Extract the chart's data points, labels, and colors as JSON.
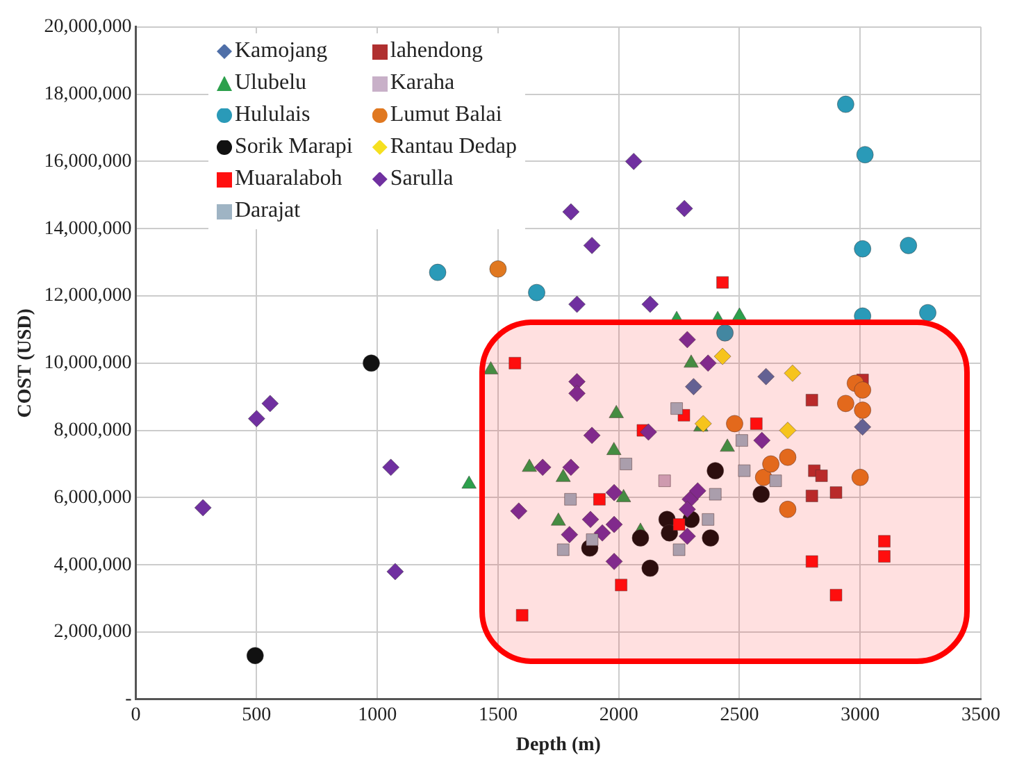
{
  "chart_data": {
    "type": "scatter",
    "xlabel": "Depth (m)",
    "ylabel": "COST (USD)",
    "xlim": [
      0,
      3500
    ],
    "xticks": [
      0,
      500,
      1000,
      1500,
      2000,
      2500,
      3000,
      3500
    ],
    "ylim": [
      0,
      20000000
    ],
    "yticks": [
      {
        "value": 0,
        "label": "-"
      },
      {
        "value": 2000000,
        "label": "2,000,000"
      },
      {
        "value": 4000000,
        "label": "4,000,000"
      },
      {
        "value": 6000000,
        "label": "6,000,000"
      },
      {
        "value": 8000000,
        "label": "8,000,000"
      },
      {
        "value": 10000000,
        "label": "10,000,000"
      },
      {
        "value": 12000000,
        "label": "12,000,000"
      },
      {
        "value": 14000000,
        "label": "14,000,000"
      },
      {
        "value": 16000000,
        "label": "16,000,000"
      },
      {
        "value": 18000000,
        "label": "18,000,000"
      },
      {
        "value": 20000000,
        "label": "20,000,000"
      }
    ],
    "grid": true,
    "legend": "top left",
    "series": [
      {
        "name": "Kamojang",
        "color": "#4f6fa8",
        "marker": "diamond",
        "x": [
          2310,
          2610,
          3010
        ],
        "values": [
          9300000,
          9600000,
          8100000
        ]
      },
      {
        "name": "lahendong",
        "color": "#b03030",
        "marker": "square",
        "x": [
          2800,
          2800,
          2810,
          2840,
          2900,
          3010
        ],
        "values": [
          8900000,
          6050000,
          6800000,
          6650000,
          6150000,
          9500000
        ]
      },
      {
        "name": "Ulubelu",
        "color": "#2ca04c",
        "marker": "triangle",
        "x": [
          1380,
          1470,
          1630,
          1750,
          1770,
          1980,
          1990,
          2020,
          2090,
          2240,
          2300,
          2340,
          2410,
          2450,
          2500
        ],
        "values": [
          6400000,
          9800000,
          6900000,
          5300000,
          6600000,
          7400000,
          8500000,
          6000000,
          5000000,
          11300000,
          10000000,
          8100000,
          11300000,
          7500000,
          11400000
        ]
      },
      {
        "name": "Karaha",
        "color": "#c8b0c8",
        "marker": "square",
        "x": [
          2190
        ],
        "values": [
          6500000
        ]
      },
      {
        "name": "Hululais",
        "color": "#2a9ab8",
        "marker": "circle",
        "x": [
          1250,
          1660,
          2440,
          2940,
          3020,
          3010,
          3200,
          3010,
          3280
        ],
        "values": [
          12700000,
          12100000,
          10900000,
          17700000,
          16200000,
          13400000,
          13500000,
          11400000,
          11500000
        ]
      },
      {
        "name": "Lumut Balai",
        "color": "#e07820",
        "marker": "circle",
        "x": [
          1500,
          2480,
          2600,
          2630,
          2700,
          2700,
          2940,
          2980,
          3000,
          3010,
          3010
        ],
        "values": [
          12800000,
          8200000,
          6600000,
          7000000,
          7200000,
          5650000,
          8800000,
          9400000,
          6600000,
          9200000,
          8600000
        ]
      },
      {
        "name": "Sorik Marapi",
        "color": "#111111",
        "marker": "circle",
        "x": [
          494,
          975,
          1880,
          2090,
          2130,
          2200,
          2210,
          2300,
          2380,
          2400,
          2590
        ],
        "values": [
          1300000,
          10000000,
          4500000,
          4800000,
          3900000,
          5350000,
          4950000,
          5350000,
          4800000,
          6800000,
          6100000
        ]
      },
      {
        "name": "Rantau Dedap",
        "color": "#f5e020",
        "marker": "diamond",
        "x": [
          2350,
          2430,
          2700,
          2720
        ],
        "values": [
          8200000,
          10200000,
          8000000,
          9700000
        ]
      },
      {
        "name": "Muaralaboh",
        "color": "#ff1010",
        "marker": "square",
        "x": [
          1570,
          1600,
          1920,
          2010,
          2100,
          2250,
          2270,
          2430,
          2570,
          2800,
          2900,
          3100,
          3100
        ],
        "values": [
          10000000,
          2500000,
          5950000,
          3400000,
          8000000,
          5200000,
          8450000,
          12400000,
          8200000,
          4100000,
          3100000,
          4700000,
          4250000
        ]
      },
      {
        "name": "Sarulla",
        "color": "#7030a0",
        "marker": "diamond",
        "x": [
          278,
          500,
          556,
          1056,
          1074,
          2062,
          1802,
          2272,
          1889,
          1827,
          2130,
          2284,
          2370,
          1827,
          1827,
          1889,
          2123,
          1685,
          1802,
          1981,
          2296,
          2327,
          1586,
          1883,
          1981,
          2284,
          1796,
          1932,
          2284,
          1981,
          2593
        ],
        "values": [
          5700000,
          8350000,
          8800000,
          6900000,
          3800000,
          16000000,
          14500000,
          14600000,
          13500000,
          11750000,
          11750000,
          10700000,
          10000000,
          9450000,
          9100000,
          7850000,
          7950000,
          6900000,
          6900000,
          6150000,
          5950000,
          6200000,
          5600000,
          5350000,
          5200000,
          5650000,
          4900000,
          4950000,
          4850000,
          4100000,
          7700000
        ]
      },
      {
        "name": "Darajat",
        "color": "#9fb4c4",
        "marker": "square",
        "x": [
          2240,
          2030,
          1800,
          2400,
          2370,
          1890,
          1770,
          2250,
          2510,
          2520,
          2650
        ],
        "values": [
          8650000,
          7000000,
          5950000,
          6100000,
          5350000,
          4750000,
          4450000,
          4450000,
          7700000,
          6800000,
          6500000
        ]
      }
    ]
  }
}
